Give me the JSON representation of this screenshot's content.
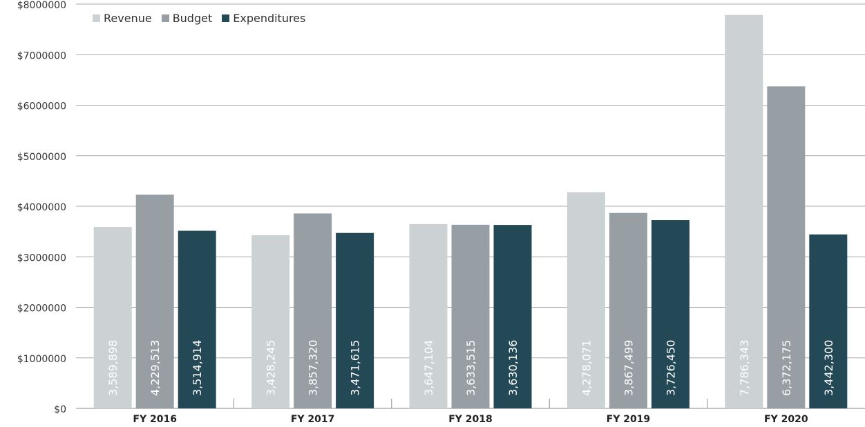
{
  "chart_data": {
    "type": "bar",
    "categories": [
      "FY 2016",
      "FY 2017",
      "FY 2018",
      "FY 2019",
      "FY 2020"
    ],
    "series": [
      {
        "name": "Revenue",
        "color": "#ccd1d3",
        "values": [
          3589898,
          3428245,
          3647104,
          4278071,
          7786343
        ],
        "labels": [
          "3,589,898",
          "3,428,245",
          "3,647,104",
          "4,278,071",
          "7,786,343"
        ]
      },
      {
        "name": "Budget",
        "color": "#979fa5",
        "values": [
          4229513,
          3857320,
          3633515,
          3867499,
          6372175
        ],
        "labels": [
          "4,229,513",
          "3,857,320",
          "3,633,515",
          "3,867,499",
          "6,372,175"
        ]
      },
      {
        "name": "Expenditures",
        "color": "#234957",
        "values": [
          3514914,
          3471615,
          3630136,
          3726450,
          3442300
        ],
        "labels": [
          "3,514,914",
          "3,471,615",
          "3,630,136",
          "3,726,450",
          "3,442,300"
        ]
      }
    ],
    "yticks": [
      0,
      1000000,
      2000000,
      3000000,
      4000000,
      5000000,
      6000000,
      7000000,
      8000000
    ],
    "ytick_labels": [
      "$0",
      "$1000000",
      "$2000000",
      "$3000000",
      "$4000000",
      "$5000000",
      "$6000000",
      "$7000000",
      "$8000000"
    ],
    "ylim": [
      0,
      8000000
    ],
    "grid": true,
    "legend_position": "top-left",
    "title": "",
    "xlabel": "",
    "ylabel": ""
  }
}
